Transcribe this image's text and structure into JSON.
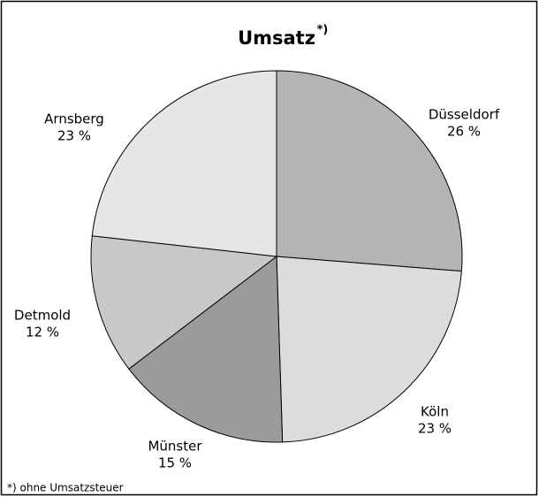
{
  "chart_data": {
    "type": "pie",
    "title": "Umsatz",
    "title_marker": "*)",
    "categories": [
      "Düsseldorf",
      "Köln",
      "Münster",
      "Detmold",
      "Arnsberg"
    ],
    "values": [
      26,
      23,
      15,
      12,
      23
    ],
    "value_labels": [
      "26 %",
      "23 %",
      "15 %",
      "12 %",
      "23 %"
    ],
    "colors": [
      "#b4b4b4",
      "#dcdcdc",
      "#9b9b9b",
      "#c8c8c8",
      "#e6e6e6"
    ],
    "note": "*) ohne Umsatzsteuer"
  }
}
